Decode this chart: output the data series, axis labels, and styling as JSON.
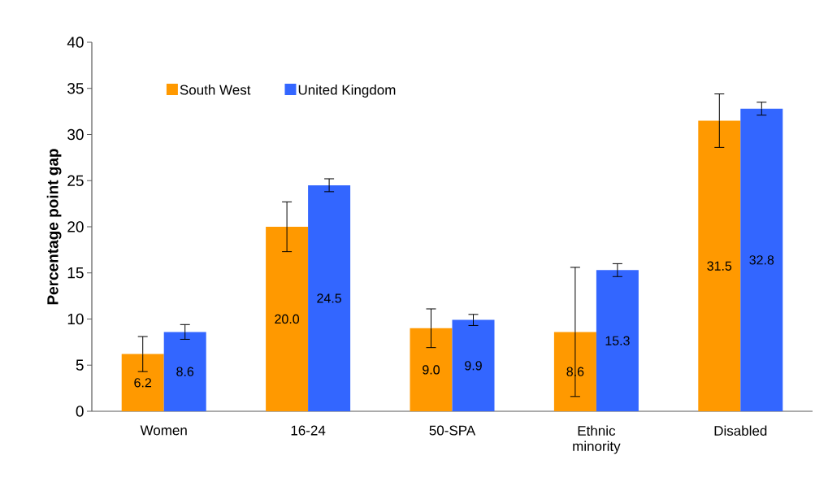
{
  "chart_data": {
    "type": "bar",
    "ylabel": "Percentage point gap",
    "categories": [
      "Women",
      "16-24",
      "50-SPA",
      "Ethnic minority",
      "Disabled"
    ],
    "series": [
      {
        "name": "South West",
        "color": "#ff9900",
        "values": [
          6.2,
          20.0,
          9.0,
          8.6,
          31.5
        ],
        "value_labels": [
          "6.2",
          "20.0",
          "9.0",
          "8.6",
          "31.5"
        ],
        "errors": [
          1.9,
          2.7,
          2.1,
          7.0,
          2.9
        ]
      },
      {
        "name": "United Kingdom",
        "color": "#3366ff",
        "values": [
          8.6,
          24.5,
          9.9,
          15.3,
          32.8
        ],
        "value_labels": [
          "8.6",
          "24.5",
          "9.9",
          "15.3",
          "32.8"
        ],
        "errors": [
          0.8,
          0.7,
          0.6,
          0.7,
          0.7
        ]
      }
    ],
    "ylim": [
      0,
      40
    ],
    "yticks": [
      0,
      5,
      10,
      15,
      20,
      25,
      30,
      35,
      40
    ],
    "legend": "top left"
  }
}
